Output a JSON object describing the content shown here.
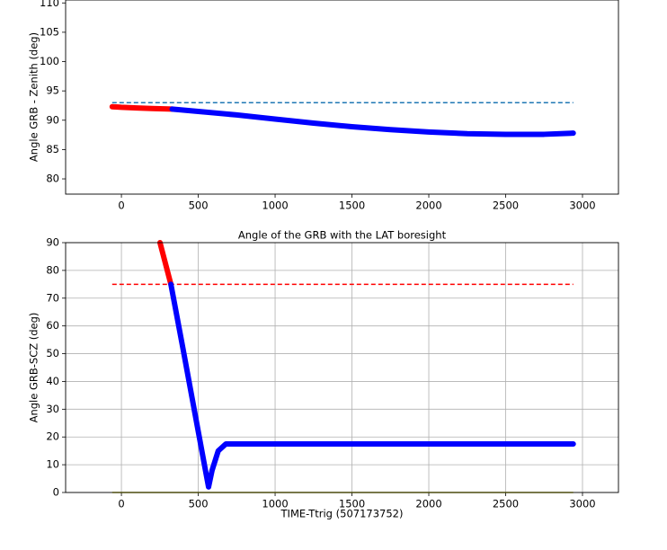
{
  "chart_data": [
    {
      "type": "line",
      "ylabel": "Angle GRB - Zenith (deg)",
      "grid": false,
      "xlim": [
        -363,
        3234
      ],
      "ylim": [
        77.4,
        110.5
      ],
      "xticks": [
        0,
        500,
        1000,
        1500,
        2000,
        2500,
        3000
      ],
      "yticks": [
        80,
        85,
        90,
        95,
        100,
        105,
        110
      ],
      "series": [
        {
          "color": "#1f77b4",
          "linestyle": "dashed",
          "x": [
            -60,
            2940
          ],
          "values": [
            93,
            93
          ]
        },
        {
          "color": "#ff0000",
          "marker": true,
          "x": [
            -60,
            0,
            100,
            200,
            330
          ],
          "values": [
            92.3,
            92.2,
            92.1,
            92.0,
            91.9
          ]
        },
        {
          "color": "#0000ff",
          "marker": true,
          "x": [
            330,
            500,
            750,
            1000,
            1250,
            1500,
            1750,
            2000,
            2250,
            2500,
            2750,
            2940
          ],
          "values": [
            91.9,
            91.5,
            90.9,
            90.2,
            89.5,
            88.9,
            88.4,
            88.0,
            87.7,
            87.6,
            87.6,
            87.8
          ]
        }
      ]
    },
    {
      "type": "line",
      "title": "Angle of the GRB with the LAT boresight",
      "xlabel": "TIME-Ttrig (507173752)",
      "ylabel": "Angle GRB-SCZ (deg)",
      "grid": true,
      "xlim": [
        -363,
        3234
      ],
      "ylim": [
        0,
        90
      ],
      "xticks": [
        0,
        500,
        1000,
        1500,
        2000,
        2500,
        3000
      ],
      "yticks": [
        0,
        10,
        20,
        30,
        40,
        50,
        60,
        70,
        80,
        90
      ],
      "series": [
        {
          "color": "#ff0000",
          "linestyle": "dashed",
          "x": [
            -60,
            2940
          ],
          "values": [
            75,
            75
          ]
        },
        {
          "color": "#bcbd22",
          "linestyle": "solid",
          "x": [
            -60,
            2940
          ],
          "values": [
            0,
            0
          ]
        },
        {
          "color": "#ff0000",
          "marker": true,
          "x": [
            251,
            322
          ],
          "values": [
            90,
            75
          ]
        },
        {
          "color": "#0000ff",
          "marker": true,
          "x": [
            322,
            400,
            500,
            550,
            567,
            590,
            630,
            680,
            1000,
            1500,
            2000,
            2500,
            2940
          ],
          "values": [
            75,
            52,
            22,
            7,
            2,
            8,
            15,
            17.5,
            17.5,
            17.5,
            17.5,
            17.5,
            17.5
          ]
        }
      ]
    }
  ]
}
